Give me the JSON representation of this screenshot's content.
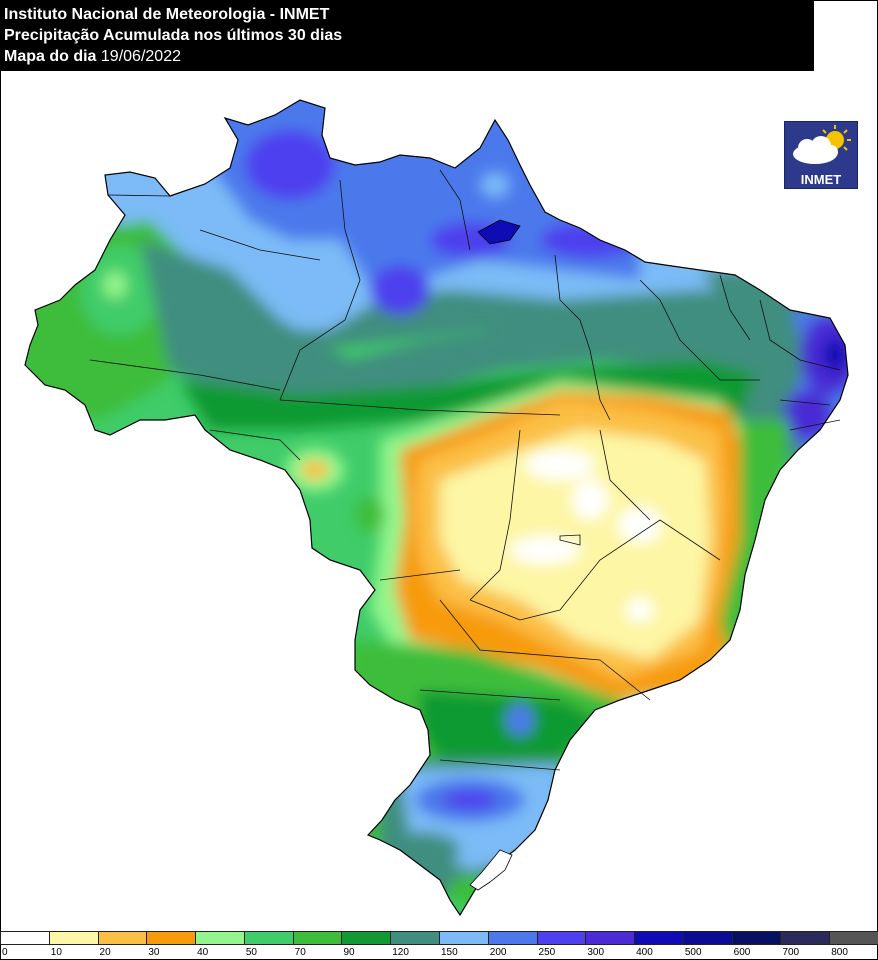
{
  "header": {
    "line1": "Instituto Nacional de Meteorologia - INMET",
    "line2": "Precipitação Acumulada nos últimos 30 dias",
    "line3_label": "Mapa do dia",
    "line3_date": "19/06/2022"
  },
  "logo": {
    "text": "INMET",
    "icon": "cloud-sun-icon"
  },
  "legend": {
    "labels": [
      "0",
      "10",
      "20",
      "30",
      "40",
      "50",
      "70",
      "90",
      "120",
      "150",
      "200",
      "250",
      "300",
      "400",
      "500",
      "600",
      "700",
      "800"
    ],
    "colors": [
      "#ffffff",
      "#fdf6a4",
      "#fbbf45",
      "#f79b0b",
      "#93f58c",
      "#3fcc69",
      "#3dbd3b",
      "#119a33",
      "#3f8e7f",
      "#7cbbf7",
      "#4b79ec",
      "#4e40ee",
      "#4a2bd5",
      "#0f0cb6",
      "#0a0d93",
      "#081063",
      "#2b2a5a",
      "#555555"
    ]
  },
  "colors": {
    "white": "#ffffff",
    "yellow": "#fdf6a4",
    "lightorange": "#fbbf45",
    "orange": "#f79b0b",
    "lightgreen": "#93f58c",
    "green": "#3fcc69",
    "green2": "#3dbd3b",
    "darkgreen": "#119a33",
    "teal": "#3f8e7f",
    "lightblue": "#7cbbf7",
    "blue": "#4b79ec",
    "violet": "#4e40ee",
    "indigo": "#4a2bd5",
    "navy": "#0f0cb6"
  }
}
